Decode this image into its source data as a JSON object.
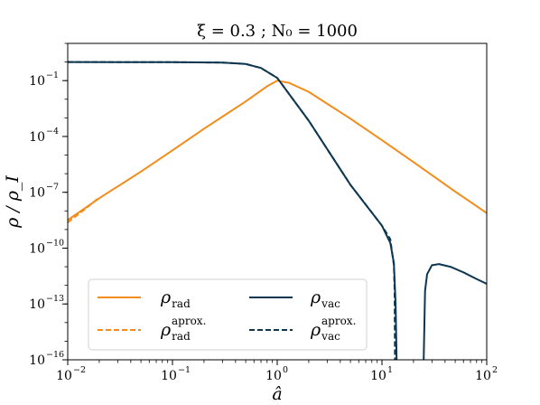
{
  "chart_data": {
    "type": "line",
    "title": "ξ = 0.3 ;  N₀ = 1000",
    "xlabel": "â",
    "ylabel": "ρ / ρ_I",
    "xscale": "log",
    "yscale": "log",
    "xlim": [
      0.01,
      100
    ],
    "ylim": [
      1e-16,
      10
    ],
    "x_ticks": [
      {
        "base": "10",
        "exp": "−2"
      },
      {
        "base": "10",
        "exp": "−1"
      },
      {
        "base": "10",
        "exp": "0"
      },
      {
        "base": "10",
        "exp": "1"
      },
      {
        "base": "10",
        "exp": "2"
      }
    ],
    "y_ticks": [
      {
        "base": "10",
        "exp": "−16"
      },
      {
        "base": "10",
        "exp": "−13"
      },
      {
        "base": "10",
        "exp": "−10"
      },
      {
        "base": "10",
        "exp": "−7"
      },
      {
        "base": "10",
        "exp": "−4"
      },
      {
        "base": "10",
        "exp": "−1"
      }
    ],
    "colors": {
      "rad": "#f28c1a",
      "vac": "#0d3651"
    },
    "legend": {
      "placement": "lower-left",
      "entries": [
        {
          "main": "ρ",
          "sub": "rad",
          "sup": "",
          "series": "rho_rad"
        },
        {
          "main": "ρ",
          "sub": "rad",
          "sup": "aprox.",
          "series": "rho_rad_aprox"
        },
        {
          "main": "ρ",
          "sub": "vac",
          "sup": "",
          "series": "rho_vac"
        },
        {
          "main": "ρ",
          "sub": "vac",
          "sup": "aprox.",
          "series": "rho_vac_aprox"
        }
      ]
    },
    "series": [
      {
        "key": "rho_rad",
        "color": "#f28c1a",
        "style": "solid",
        "x": [
          0.01,
          0.02,
          0.05,
          0.1,
          0.2,
          0.5,
          0.8,
          1.0,
          1.3,
          2,
          5,
          10,
          20,
          50,
          100
        ],
        "y": [
          3.2e-09,
          4.8e-08,
          1.3e-06,
          1.8e-05,
          0.00026,
          0.0076,
          0.05,
          0.1,
          0.075,
          0.025,
          0.0009,
          6.3e-05,
          4.2e-06,
          1.1e-07,
          7.6e-09
        ]
      },
      {
        "key": "rho_rad_aprox",
        "color": "#f28c1a",
        "style": "dashed",
        "x": [
          0.01,
          0.015,
          0.02
        ],
        "y": [
          2.4e-09,
          1.4e-08,
          5.3e-08
        ]
      },
      {
        "key": "rho_vac",
        "color": "#0d3651",
        "style": "solid",
        "x": [
          0.01,
          0.1,
          0.3,
          0.5,
          0.7,
          1.0,
          2,
          5,
          10,
          12,
          13,
          13.5,
          13.8
        ],
        "y": [
          1.0,
          0.98,
          0.93,
          0.78,
          0.48,
          0.14,
          0.0007,
          2.5e-07,
          1.6e-09,
          1.9e-10,
          1.6e-11,
          1e-13,
          1e-16
        ]
      },
      {
        "key": "rho_vac_tail",
        "color": "#0d3651",
        "style": "solid",
        "x": [
          25,
          25.8,
          27,
          30,
          35,
          45,
          60,
          80,
          100
        ],
        "y": [
          1e-16,
          5e-13,
          4e-12,
          1.2e-11,
          1.4e-11,
          1e-11,
          5e-12,
          2.2e-12,
          1.2e-12
        ]
      },
      {
        "key": "rho_vac_aprox",
        "color": "#0d3651",
        "style": "dashed",
        "x": [
          0.01,
          0.1,
          0.3,
          0.5,
          0.7,
          1.0,
          2,
          5,
          10,
          12,
          13,
          13.2,
          13.3
        ],
        "y": [
          1.0,
          0.98,
          0.93,
          0.78,
          0.48,
          0.14,
          0.0007,
          2.5e-07,
          1.6e-09,
          3e-10,
          1.2e-11,
          5e-13,
          1e-16
        ]
      }
    ]
  }
}
